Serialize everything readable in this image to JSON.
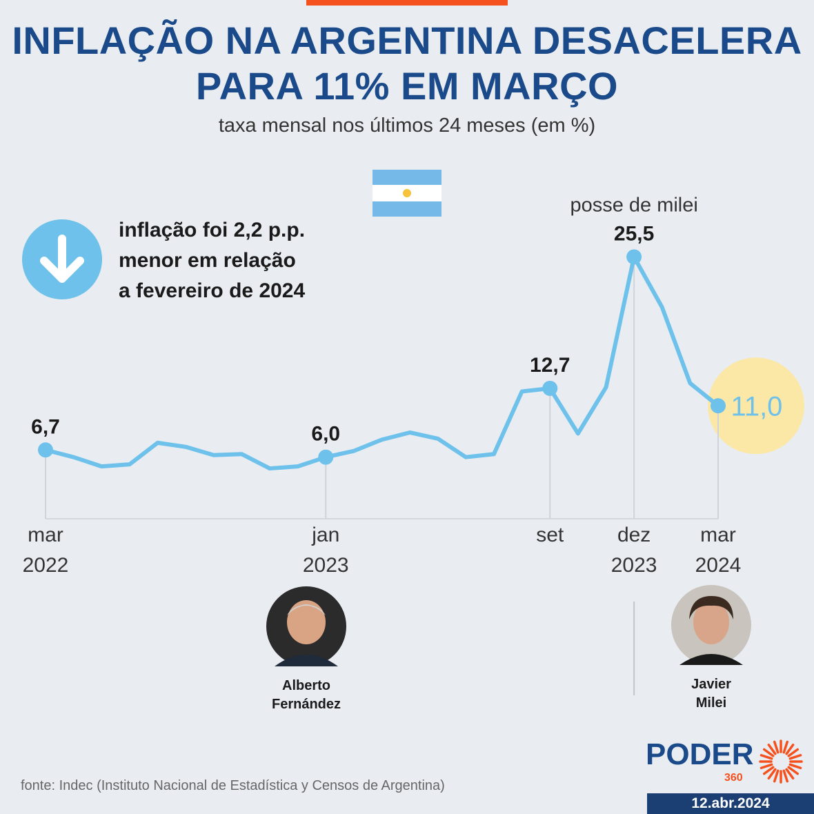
{
  "header": {
    "title_line1": "INFLAÇÃO NA ARGENTINA DESACELERA",
    "title_line2": "PARA 11% EM MARÇO",
    "subtitle": "taxa mensal nos últimos 24 meses (em %)"
  },
  "callout": {
    "icon": "down-arrow-icon",
    "line1": "inflação foi 2,2 p.p.",
    "line2": "menor em relação",
    "line3": "a fevereiro de 2024"
  },
  "chart_data": {
    "type": "line",
    "x": [
      "mar 2022",
      "abr 2022",
      "mai 2022",
      "jun 2022",
      "jul 2022",
      "ago 2022",
      "set 2022",
      "out 2022",
      "nov 2022",
      "dez 2022",
      "jan 2023",
      "fev 2023",
      "mar 2023",
      "abr 2023",
      "mai 2023",
      "jun 2023",
      "jul 2023",
      "ago 2023",
      "set 2023",
      "out 2023",
      "nov 2023",
      "dez 2023",
      "jan 2024",
      "fev 2024",
      "mar 2024"
    ],
    "values": [
      6.7,
      6.0,
      5.1,
      5.3,
      7.4,
      7.0,
      6.2,
      6.3,
      4.9,
      5.1,
      6.0,
      6.6,
      7.7,
      8.4,
      7.8,
      6.0,
      6.3,
      12.4,
      12.7,
      8.3,
      12.8,
      25.5,
      20.6,
      13.2,
      11.0
    ],
    "ylim": [
      0,
      26
    ],
    "color": "#6ec1ea",
    "labeled_points": [
      {
        "index": 0,
        "label": "6,7"
      },
      {
        "index": 10,
        "label": "6,0"
      },
      {
        "index": 18,
        "label": "12,7"
      },
      {
        "index": 21,
        "label": "25,5"
      },
      {
        "index": 24,
        "label": "11,0"
      }
    ],
    "annotation": "posse de milei",
    "x_ticks": [
      {
        "index": 0,
        "line1": "mar",
        "line2": "2022"
      },
      {
        "index": 10,
        "line1": "jan",
        "line2": "2023"
      },
      {
        "index": 18,
        "line1": "set",
        "line2": ""
      },
      {
        "index": 21,
        "line1": "dez",
        "line2": "2023"
      },
      {
        "index": 24,
        "line1": "mar",
        "line2": "2024"
      }
    ],
    "highlight_color": "#fbe7a6"
  },
  "people": [
    {
      "name_line1": "Alberto",
      "name_line2": "Fernández"
    },
    {
      "name_line1": "Javier",
      "name_line2": "Milei"
    }
  ],
  "footer": {
    "source": "fonte: Indec (Instituto Nacional de Estadística y Censos de Argentina)",
    "logo_text": "PODER",
    "logo_sub": "360",
    "date": "12.abr.2024"
  }
}
